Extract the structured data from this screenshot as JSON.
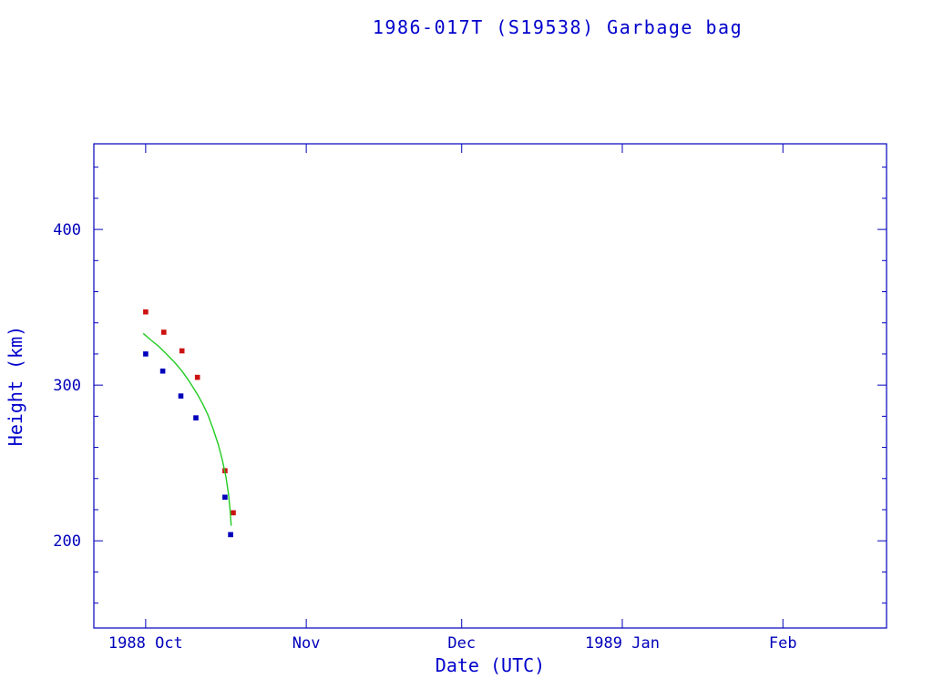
{
  "colors": {
    "background": "#ffffff",
    "axis": "#0000bb",
    "title": "#0000cc",
    "apogee": "#cc1111",
    "perigee": "#0000bb",
    "decay_line": "#22cc22"
  },
  "chart_data": {
    "type": "scatter",
    "title": "1986-017T (S19538) Garbage bag",
    "xlabel": "Date (UTC)",
    "ylabel": "Height (km)",
    "x_unit": "days since 1988-10-01",
    "xlim": [
      -10,
      143
    ],
    "ylim": [
      144,
      455
    ],
    "y_minor_step": 20,
    "grid": false,
    "legend": "none",
    "x_ticks": [
      {
        "day": 0,
        "label": "1988 Oct"
      },
      {
        "day": 31,
        "label": "Nov"
      },
      {
        "day": 61,
        "label": "Dec"
      },
      {
        "day": 92,
        "label": "1989 Jan"
      },
      {
        "day": 123,
        "label": "Feb"
      }
    ],
    "y_ticks": [
      {
        "value": 200,
        "label": "200"
      },
      {
        "value": 300,
        "label": "300"
      },
      {
        "value": 400,
        "label": "400"
      }
    ],
    "series": [
      {
        "name": "apogee-height",
        "marker": "square",
        "color": "#cc1111",
        "points": [
          [
            0,
            347
          ],
          [
            3.5,
            334
          ],
          [
            7,
            322
          ],
          [
            10,
            305
          ],
          [
            15.3,
            245
          ],
          [
            16.9,
            218
          ]
        ]
      },
      {
        "name": "perigee-height",
        "marker": "square",
        "color": "#0000bb",
        "points": [
          [
            0,
            320
          ],
          [
            3.3,
            309
          ],
          [
            6.8,
            293
          ],
          [
            9.7,
            279
          ],
          [
            15.3,
            228
          ],
          [
            16.4,
            204
          ]
        ]
      },
      {
        "name": "predicted-decay",
        "type": "line",
        "color": "#22cc22",
        "points": [
          [
            -0.4,
            333
          ],
          [
            1,
            329
          ],
          [
            2.5,
            325
          ],
          [
            4,
            320
          ],
          [
            5.5,
            315
          ],
          [
            7,
            309
          ],
          [
            8.5,
            302
          ],
          [
            10,
            294
          ],
          [
            11,
            288
          ],
          [
            12,
            281
          ],
          [
            13,
            272
          ],
          [
            14,
            262
          ],
          [
            14.8,
            252
          ],
          [
            15.5,
            241
          ],
          [
            16,
            230
          ],
          [
            16.3,
            220
          ],
          [
            16.5,
            210
          ]
        ]
      }
    ]
  }
}
